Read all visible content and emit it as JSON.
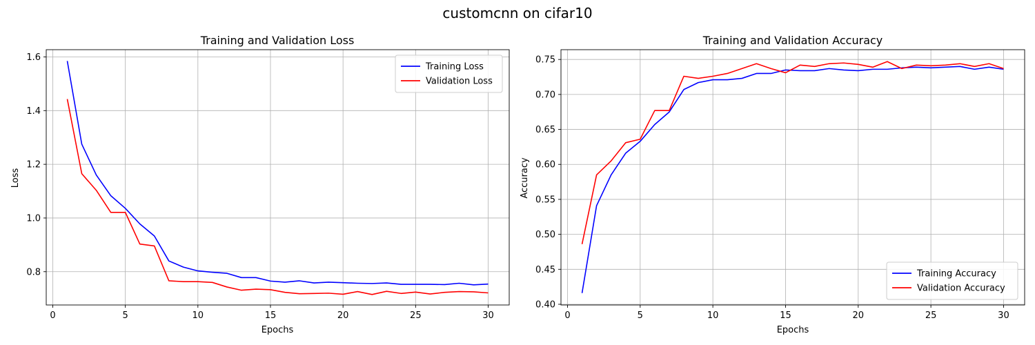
{
  "figure": {
    "suptitle": "customcnn on cifar10"
  },
  "colors": {
    "training": "#0000ff",
    "validation": "#ff0000",
    "grid": "#b0b0b0",
    "axes": "#000000"
  },
  "chart_data": [
    {
      "type": "line",
      "title": "Training and Validation Loss",
      "xlabel": "Epochs",
      "ylabel": "Loss",
      "xlim": [
        -0.45,
        31.45
      ],
      "ylim": [
        0.676,
        1.627
      ],
      "xticks": [
        0,
        5,
        10,
        15,
        20,
        25,
        30
      ],
      "yticks": [
        0.8,
        1.0,
        1.2,
        1.4,
        1.6
      ],
      "ytick_labels": [
        "0.8",
        "1.0",
        "1.2",
        "1.4",
        "1.6"
      ],
      "grid": true,
      "legend_position": "top-right",
      "x": [
        1,
        2,
        3,
        4,
        5,
        6,
        7,
        8,
        9,
        10,
        11,
        12,
        13,
        14,
        15,
        16,
        17,
        18,
        19,
        20,
        21,
        22,
        23,
        24,
        25,
        26,
        27,
        28,
        29,
        30
      ],
      "series": [
        {
          "name": "Training Loss",
          "color": "#0000ff",
          "values": [
            1.585,
            1.275,
            1.16,
            1.083,
            1.036,
            0.978,
            0.933,
            0.84,
            0.817,
            0.803,
            0.798,
            0.794,
            0.778,
            0.778,
            0.765,
            0.761,
            0.766,
            0.758,
            0.761,
            0.759,
            0.757,
            0.756,
            0.758,
            0.753,
            0.753,
            0.753,
            0.752,
            0.757,
            0.751,
            0.754
          ]
        },
        {
          "name": "Validation Loss",
          "color": "#ff0000",
          "values": [
            1.443,
            1.165,
            1.103,
            1.021,
            1.021,
            0.903,
            0.896,
            0.766,
            0.763,
            0.763,
            0.76,
            0.743,
            0.731,
            0.735,
            0.733,
            0.723,
            0.718,
            0.719,
            0.72,
            0.716,
            0.726,
            0.715,
            0.727,
            0.719,
            0.724,
            0.717,
            0.723,
            0.726,
            0.725,
            0.721
          ]
        }
      ]
    },
    {
      "type": "line",
      "title": "Training and Validation Accuracy",
      "xlabel": "Epochs",
      "ylabel": "Accuracy",
      "xlim": [
        -0.45,
        31.45
      ],
      "ylim": [
        0.399,
        0.764
      ],
      "xticks": [
        0,
        5,
        10,
        15,
        20,
        25,
        30
      ],
      "yticks": [
        0.4,
        0.45,
        0.5,
        0.55,
        0.6,
        0.65,
        0.7,
        0.75
      ],
      "ytick_labels": [
        "0.40",
        "0.45",
        "0.50",
        "0.55",
        "0.60",
        "0.65",
        "0.70",
        "0.75"
      ],
      "grid": true,
      "legend_position": "bottom-right",
      "x": [
        1,
        2,
        3,
        4,
        5,
        6,
        7,
        8,
        9,
        10,
        11,
        12,
        13,
        14,
        15,
        16,
        17,
        18,
        19,
        20,
        21,
        22,
        23,
        24,
        25,
        26,
        27,
        28,
        29,
        30
      ],
      "series": [
        {
          "name": "Training Accuracy",
          "color": "#0000ff",
          "values": [
            0.416,
            0.541,
            0.585,
            0.616,
            0.633,
            0.657,
            0.675,
            0.707,
            0.717,
            0.721,
            0.721,
            0.723,
            0.73,
            0.73,
            0.735,
            0.734,
            0.734,
            0.737,
            0.735,
            0.734,
            0.736,
            0.736,
            0.738,
            0.739,
            0.738,
            0.739,
            0.74,
            0.736,
            0.739,
            0.736
          ]
        },
        {
          "name": "Validation Accuracy",
          "color": "#ff0000",
          "values": [
            0.486,
            0.585,
            0.605,
            0.631,
            0.636,
            0.677,
            0.677,
            0.726,
            0.723,
            0.726,
            0.73,
            0.737,
            0.744,
            0.737,
            0.731,
            0.742,
            0.74,
            0.744,
            0.745,
            0.743,
            0.739,
            0.747,
            0.737,
            0.742,
            0.741,
            0.742,
            0.744,
            0.74,
            0.744,
            0.737
          ]
        }
      ]
    }
  ]
}
